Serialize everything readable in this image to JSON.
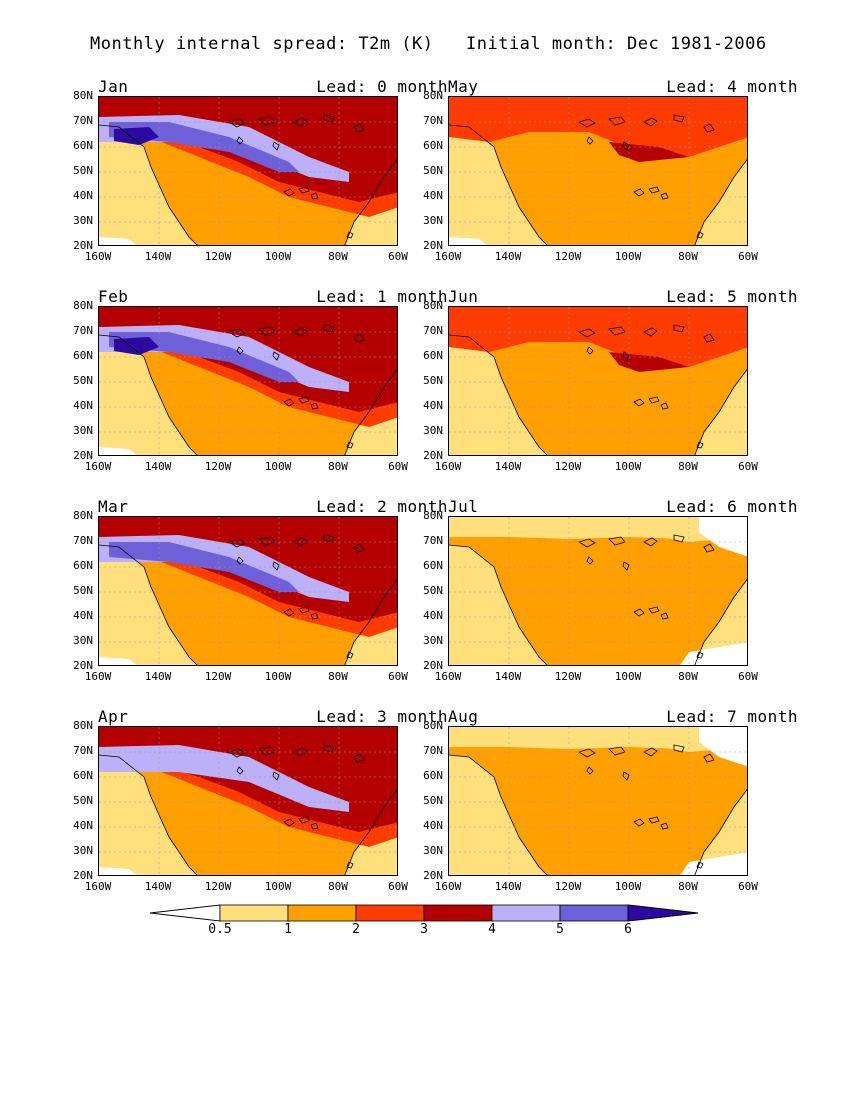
{
  "title_left": "Monthly internal spread: T2m (K)",
  "title_right": "Initial month: Dec 1981-2006",
  "panels": [
    {
      "month": "Jan",
      "lead": "Lead: 0 month",
      "blue": 3,
      "col": 0,
      "row": 0
    },
    {
      "month": "Feb",
      "lead": "Lead: 1 month",
      "blue": 3,
      "col": 0,
      "row": 1
    },
    {
      "month": "Mar",
      "lead": "Lead: 2 month",
      "blue": 2,
      "col": 0,
      "row": 2
    },
    {
      "month": "Apr",
      "lead": "Lead: 3 month",
      "blue": 1,
      "col": 0,
      "row": 3
    },
    {
      "month": "May",
      "lead": "Lead: 4 month",
      "blue": 0,
      "col": 1,
      "row": 0
    },
    {
      "month": "Jun",
      "lead": "Lead: 5 month",
      "blue": 0,
      "col": 1,
      "row": 1
    },
    {
      "month": "Jul",
      "lead": "Lead: 6 month",
      "blue": 0,
      "col": 1,
      "row": 2
    },
    {
      "month": "Aug",
      "lead": "Lead: 7 month",
      "blue": 0,
      "col": 1,
      "row": 3
    }
  ],
  "y_ticks": [
    "80N",
    "70N",
    "60N",
    "50N",
    "40N",
    "30N",
    "20N"
  ],
  "x_ticks": [
    "160W",
    "140W",
    "120W",
    "100W",
    "80W",
    "60W"
  ],
  "colorbar": {
    "labels": [
      "0.5",
      "1",
      "2",
      "3",
      "4",
      "5",
      "6"
    ],
    "colors": [
      "#ffffff",
      "#ffe07c",
      "#ff9f00",
      "#ff3c00",
      "#b40000",
      "#bcb0f8",
      "#6f5fd9",
      "#2a0aa0"
    ]
  }
}
